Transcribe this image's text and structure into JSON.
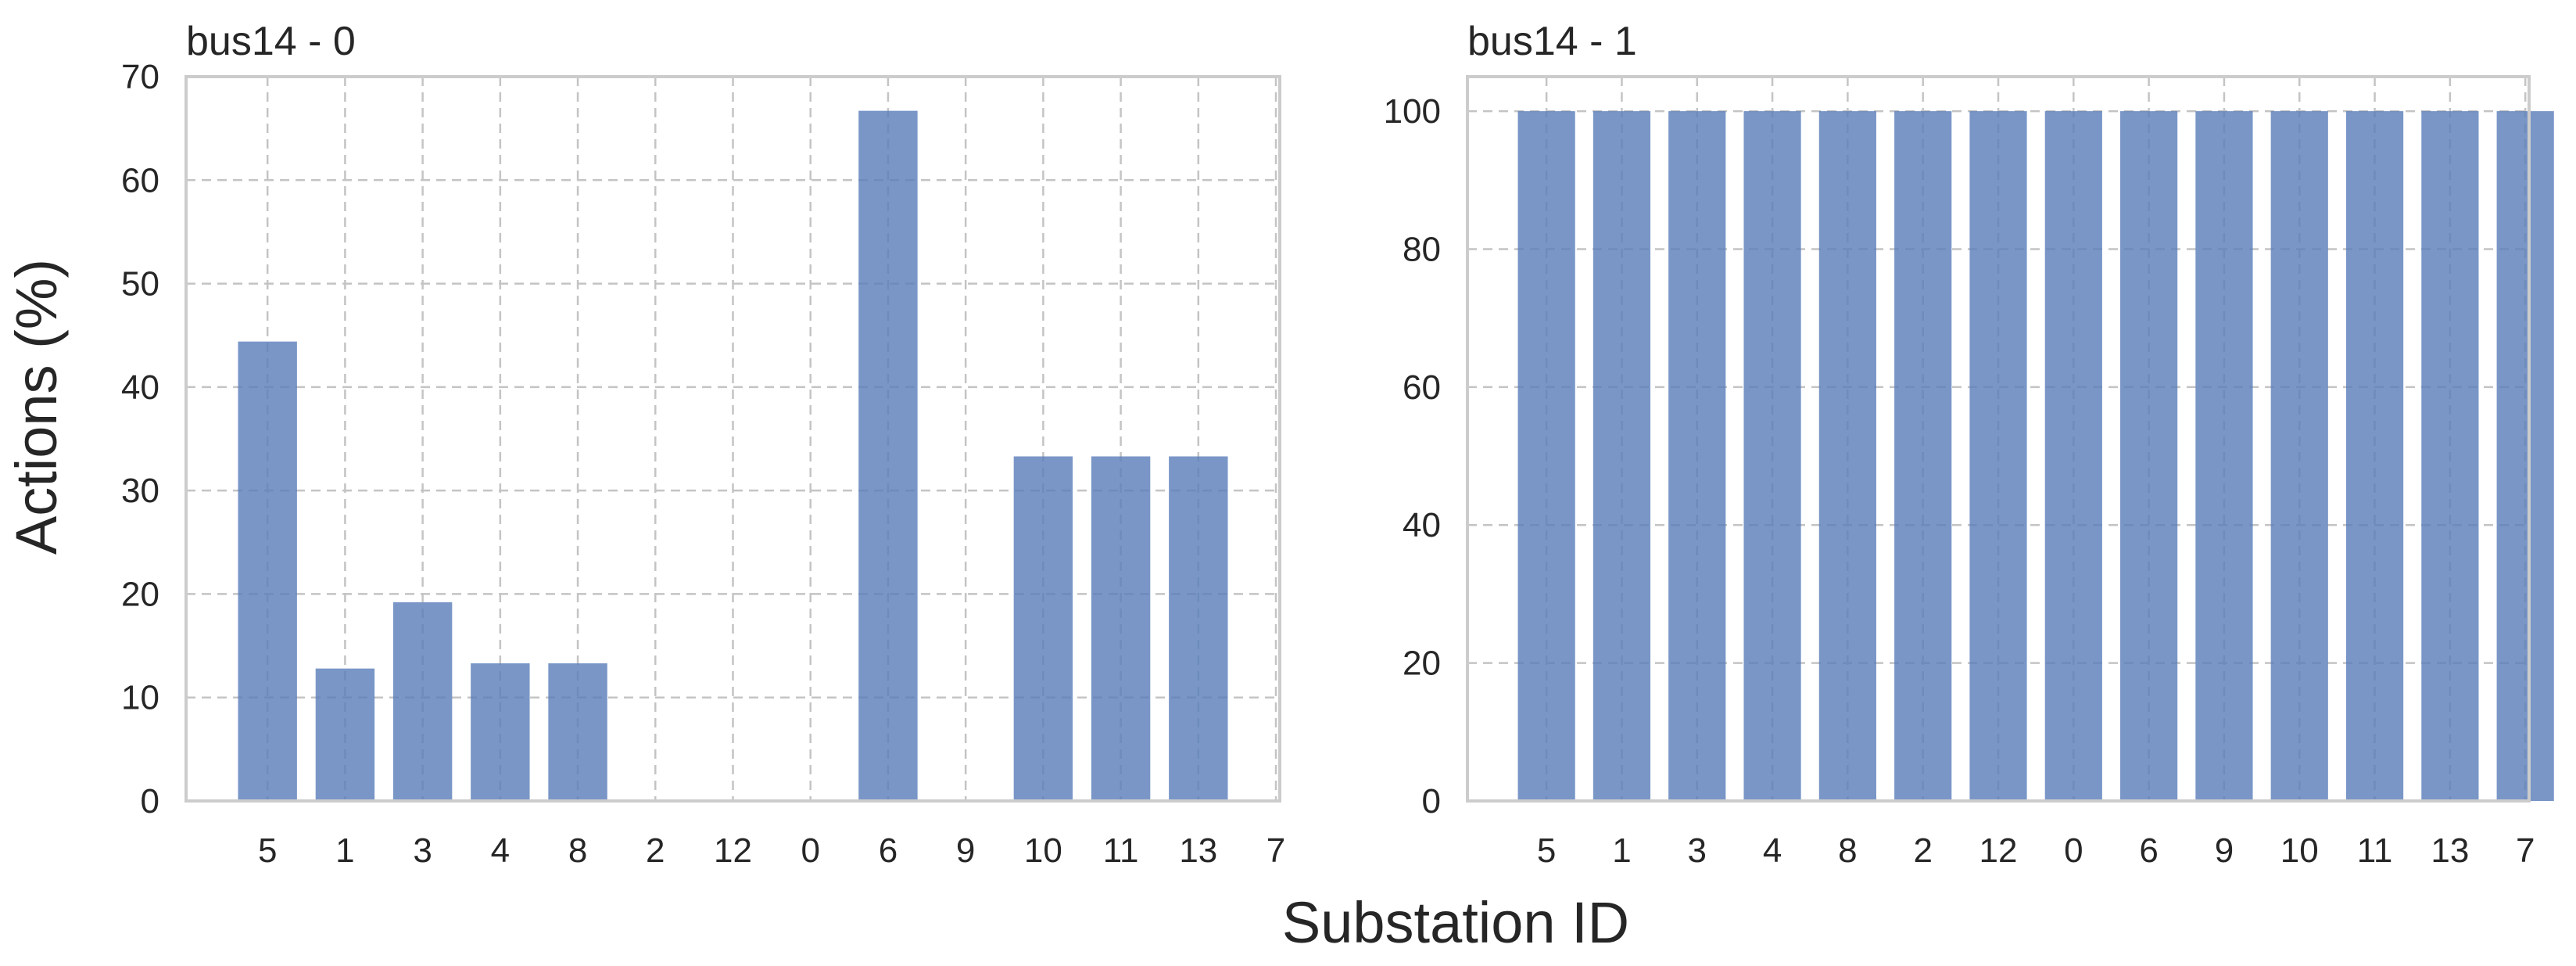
{
  "figure": {
    "ylabel": "Actions (%)",
    "xlabel": "Substation ID"
  },
  "colors": {
    "bar": "#5b7fbb",
    "bar_opacity": "0.82"
  },
  "chart_data": [
    {
      "type": "bar",
      "title": "bus14 - 0",
      "categories": [
        "5",
        "1",
        "3",
        "4",
        "8",
        "2",
        "12",
        "0",
        "6",
        "9",
        "10",
        "11",
        "13",
        "7"
      ],
      "values": [
        44.4,
        12.8,
        19.2,
        13.3,
        13.3,
        0,
        0,
        0,
        66.7,
        0,
        33.3,
        33.3,
        33.3,
        0
      ],
      "ylim": [
        0,
        70
      ],
      "yticks": [
        0,
        10,
        20,
        30,
        40,
        50,
        60,
        70
      ],
      "grid": true
    },
    {
      "type": "bar",
      "title": "bus14 - 1",
      "categories": [
        "5",
        "1",
        "3",
        "4",
        "8",
        "2",
        "12",
        "0",
        "6",
        "9",
        "10",
        "11",
        "13",
        "7"
      ],
      "values": [
        100,
        100,
        100,
        100,
        100,
        100,
        100,
        100,
        100,
        100,
        100,
        100,
        100,
        100
      ],
      "ylim": [
        0,
        105
      ],
      "yticks": [
        0,
        20,
        40,
        60,
        80,
        100
      ],
      "grid": true
    }
  ]
}
